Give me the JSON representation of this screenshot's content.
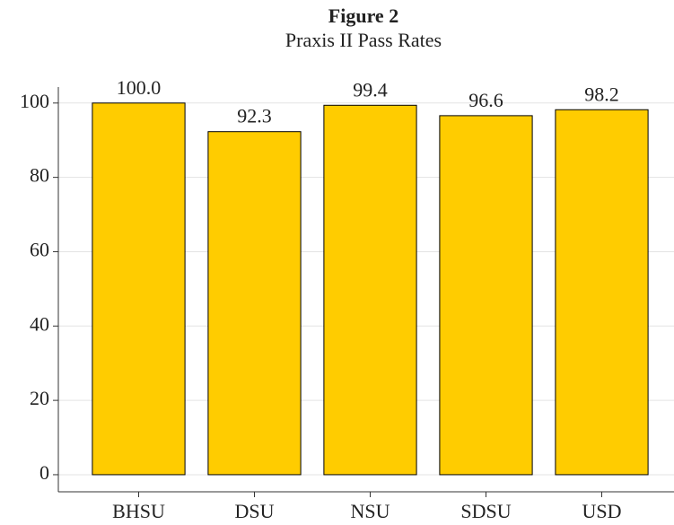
{
  "chart_data": {
    "type": "bar",
    "title": "Figure 2",
    "subtitle": "Praxis II Pass Rates",
    "categories": [
      "BHSU",
      "DSU",
      "NSU",
      "SDSU",
      "USD"
    ],
    "values": [
      100.0,
      92.3,
      99.4,
      96.6,
      98.2
    ],
    "value_labels": [
      "100.0",
      "92.3",
      "99.4",
      "96.6",
      "98.2"
    ],
    "color": "#ffcc00",
    "ylim": [
      -4.6,
      104.3
    ],
    "yticks": [
      0,
      20,
      40,
      60,
      80,
      100
    ],
    "grid": true
  }
}
